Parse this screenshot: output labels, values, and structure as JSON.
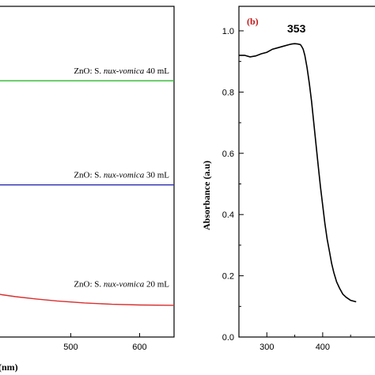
{
  "chart_data": [
    {
      "type": "line",
      "panel": "a",
      "xlabel_visible": "(nm)",
      "xlim": [
        395,
        650
      ],
      "x_ticks": [
        500,
        600
      ],
      "series": [
        {
          "label_prefix": "ZnO: S. ",
          "label_italic": "nux-vomica",
          "label_suffix": " 40 mL",
          "color": "#2db82d",
          "x": [
            395,
            650
          ],
          "y": [
            0.775,
            0.775
          ]
        },
        {
          "label_prefix": "ZnO: S. ",
          "label_italic": "nux-vomica",
          "label_suffix": " 30 mL",
          "color": "#2b2bb0",
          "x": [
            395,
            650
          ],
          "y": [
            0.46,
            0.46
          ]
        },
        {
          "label_prefix": "ZnO: S. ",
          "label_italic": "nux-vomica",
          "label_suffix": " 20 mL",
          "color": "#d83030",
          "x": [
            395,
            400,
            420,
            450,
            480,
            520,
            560,
            600,
            650
          ],
          "y": [
            0.13,
            0.128,
            0.122,
            0.115,
            0.109,
            0.103,
            0.099,
            0.097,
            0.096
          ]
        }
      ]
    },
    {
      "type": "line",
      "panel": "b",
      "panel_tag": "(b)",
      "ylabel": "Absorbance (a.u)",
      "xlim": [
        250,
        505
      ],
      "ylim": [
        0,
        1.08
      ],
      "x_ticks": [
        300,
        400
      ],
      "x_tick_labels": [
        "300",
        "400"
      ],
      "y_ticks": [
        0.0,
        0.2,
        0.4,
        0.6,
        0.8,
        1.0
      ],
      "y_tick_labels": [
        "0.0",
        "0.2",
        "0.4",
        "0.6",
        "0.8",
        "1.0"
      ],
      "peak_label": "353",
      "series": [
        {
          "color": "#000000",
          "x": [
            250,
            260,
            270,
            280,
            290,
            300,
            310,
            320,
            330,
            340,
            345,
            350,
            355,
            360,
            362,
            365,
            368,
            372,
            376,
            380,
            384,
            388,
            392,
            396,
            400,
            404,
            408,
            412,
            416,
            420,
            425,
            430,
            436,
            442,
            450,
            460
          ],
          "y": [
            0.92,
            0.92,
            0.915,
            0.918,
            0.925,
            0.93,
            0.94,
            0.945,
            0.95,
            0.955,
            0.957,
            0.958,
            0.957,
            0.955,
            0.95,
            0.94,
            0.92,
            0.88,
            0.83,
            0.77,
            0.7,
            0.63,
            0.56,
            0.49,
            0.43,
            0.37,
            0.32,
            0.28,
            0.24,
            0.21,
            0.18,
            0.16,
            0.14,
            0.13,
            0.12,
            0.115
          ]
        }
      ]
    }
  ]
}
